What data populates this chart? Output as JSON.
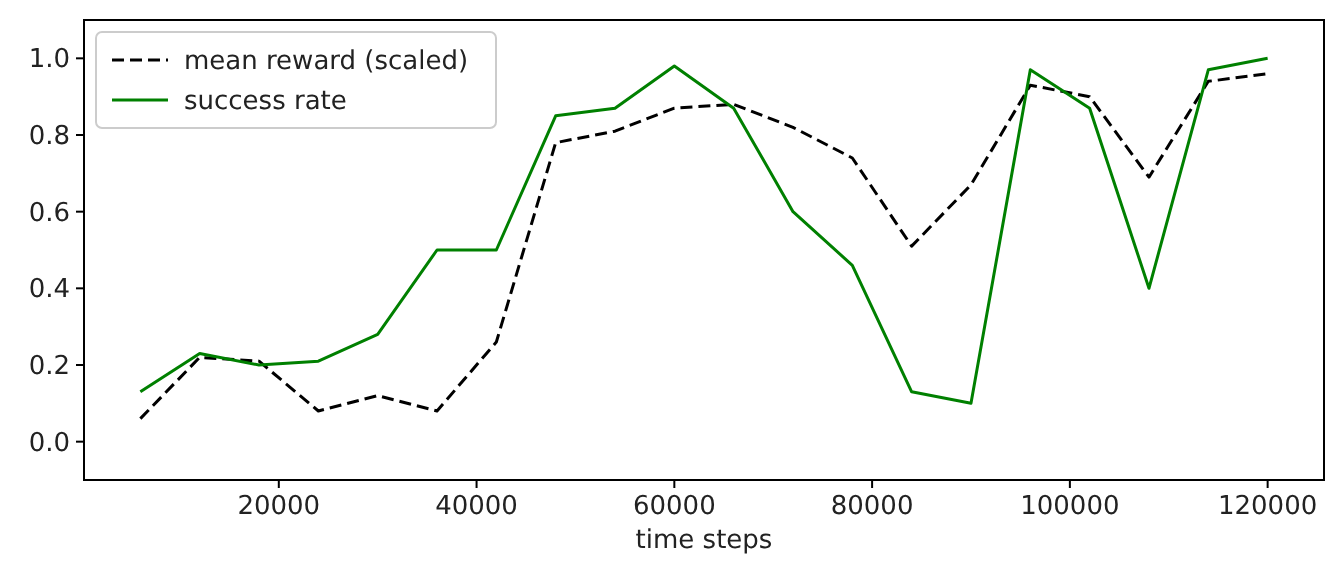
{
  "chart_data": {
    "type": "line",
    "xlabel": "time steps",
    "x": [
      6000,
      12000,
      18000,
      24000,
      30000,
      36000,
      42000,
      48000,
      54000,
      60000,
      66000,
      72000,
      78000,
      84000,
      90000,
      96000,
      102000,
      108000,
      114000,
      120000
    ],
    "series": [
      {
        "name": "mean reward (scaled)",
        "color": "#000000",
        "line_style": "dashed",
        "values": [
          0.06,
          0.22,
          0.21,
          0.08,
          0.12,
          0.08,
          0.26,
          0.78,
          0.81,
          0.87,
          0.88,
          0.82,
          0.74,
          0.51,
          0.67,
          0.93,
          0.9,
          0.69,
          0.94,
          0.96
        ]
      },
      {
        "name": "success rate",
        "color": "#008000",
        "line_style": "solid",
        "values": [
          0.13,
          0.23,
          0.2,
          0.21,
          0.28,
          0.5,
          0.5,
          0.85,
          0.87,
          0.98,
          0.87,
          0.6,
          0.46,
          0.13,
          0.1,
          0.97,
          0.87,
          0.4,
          0.97,
          1.0
        ]
      }
    ],
    "xlim": [
      300,
      125700
    ],
    "xticks": [
      20000,
      40000,
      60000,
      80000,
      100000,
      120000
    ],
    "ylim": [
      -0.1,
      1.1
    ],
    "yticks": [
      {
        "value": 0,
        "label": "0.0"
      },
      {
        "value": 0.2,
        "label": "0.2"
      },
      {
        "value": 0.4,
        "label": "0.4"
      },
      {
        "value": 0.6,
        "label": "0.6"
      },
      {
        "value": 0.8,
        "label": "0.8"
      },
      {
        "value": 1,
        "label": "1.0"
      }
    ],
    "legend": "top left",
    "grid": false
  }
}
